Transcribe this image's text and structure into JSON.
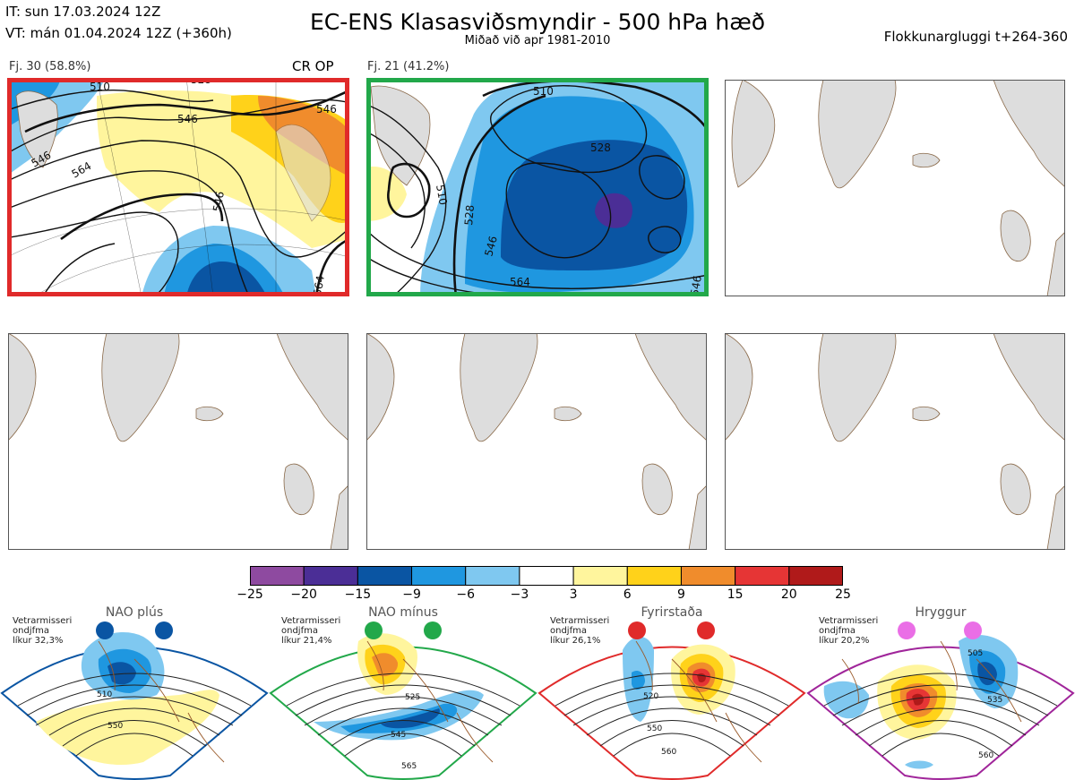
{
  "header": {
    "init_time": "IT: sun 17.03.2024 12Z",
    "valid_time": "VT: mán 01.04.2024 12Z  (+360h)",
    "title": "EC-ENS Klasasviðsmyndir - 500 hPa hæð",
    "subtitle": "Miðað við apr 1981-2010",
    "window": "Flokkunargluggi t+264-360"
  },
  "chart_data": [
    {
      "type": "map",
      "id": "cluster-1",
      "label": "Fj. 30 (58.8%)",
      "members": 30,
      "probability_percent": 58.8,
      "tag": "CR OP",
      "border_color": "#e02a2a",
      "contour_labels": [
        "510",
        "528",
        "546",
        "546",
        "564",
        "546",
        "546",
        "564"
      ]
    },
    {
      "type": "map",
      "id": "cluster-2",
      "label": "Fj. 21 (41.2%)",
      "members": 21,
      "probability_percent": 41.2,
      "border_color": "#22a84a",
      "contour_labels": [
        "510",
        "528",
        "528",
        "510",
        "546",
        "564",
        "546"
      ]
    },
    {
      "type": "map",
      "id": "empty-3",
      "empty": true
    },
    {
      "type": "map",
      "id": "empty-4",
      "empty": true
    },
    {
      "type": "map",
      "id": "empty-5",
      "empty": true
    },
    {
      "type": "map",
      "id": "empty-6",
      "empty": true
    },
    {
      "type": "colorbar",
      "ticks": [
        "−25",
        "−20",
        "−15",
        "−9",
        "−6",
        "−3",
        "3",
        "6",
        "9",
        "15",
        "20",
        "25"
      ],
      "colors": [
        "#8e4aa0",
        "#4b2e96",
        "#0a55a3",
        "#1f97e0",
        "#7fc8f0",
        "#ffffff",
        "#fff59d",
        "#ffd21a",
        "#f08c2c",
        "#e63535",
        "#b01a1a"
      ]
    },
    {
      "type": "regime",
      "name": "NAO plús",
      "season": "Vetrarmisseri",
      "metric": "ondjfma",
      "probability": "líkur 32,3%",
      "color": "#0a55a3",
      "contour_labels": [
        "510",
        "550"
      ]
    },
    {
      "type": "regime",
      "name": "NAO mínus",
      "season": "Vetrarmisseri",
      "metric": "ondjfma",
      "probability": "líkur 21,4%",
      "color": "#22a84a",
      "contour_labels": [
        "525",
        "545",
        "565"
      ]
    },
    {
      "type": "regime",
      "name": "Fyrirstaða",
      "season": "Vetrarmisseri",
      "metric": "ondjfma",
      "probability": "líkur 26,1%",
      "color": "#e02a2a",
      "contour_labels": [
        "520",
        "550",
        "560"
      ]
    },
    {
      "type": "regime",
      "name": "Hryggur",
      "season": "Vetrarmisseri",
      "metric": "ondjfma",
      "probability": "líkur 20,2%",
      "color": "#a0259a",
      "contour_labels": [
        "505",
        "535",
        "560"
      ]
    }
  ],
  "colors": {
    "land": "#dddddd",
    "coast": "#8a6a4a",
    "contour": "#111111"
  }
}
